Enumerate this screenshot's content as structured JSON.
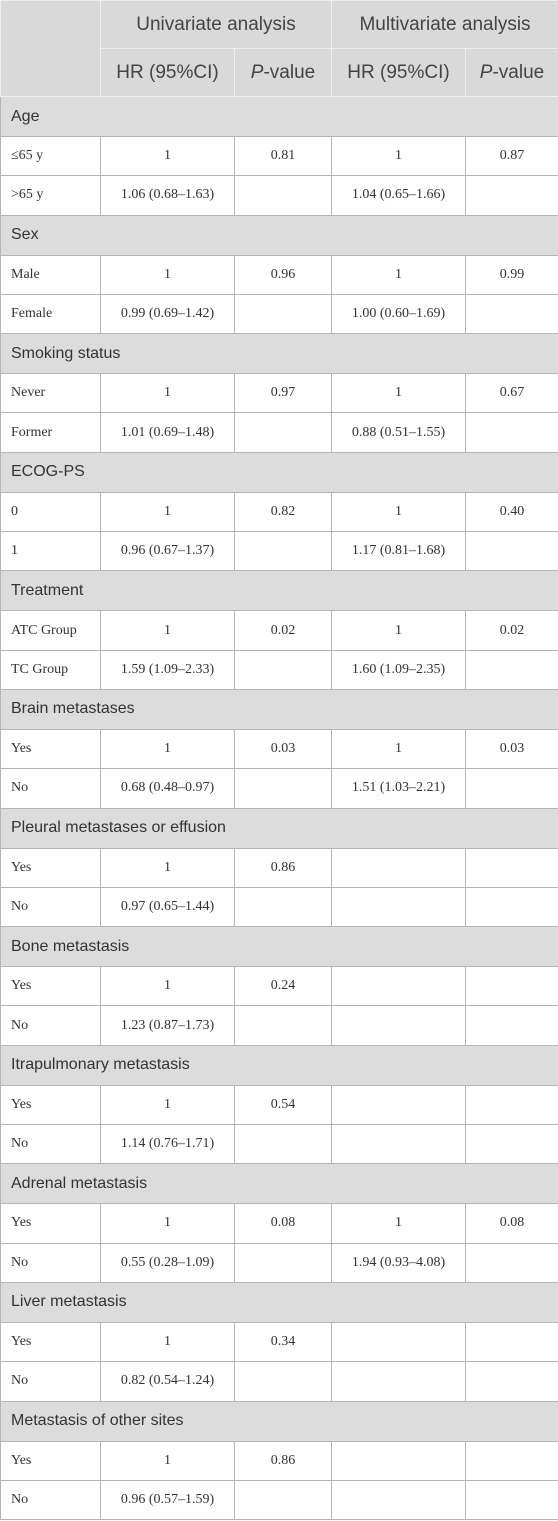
{
  "header": {
    "row1": [
      "Univariate analysis",
      "Multivariate analysis"
    ],
    "row2": [
      "HR (95%CI)",
      {
        "italic": "P",
        "rest": "-value"
      },
      "HR (95%CI)",
      {
        "italic": "P",
        "rest": "-value"
      }
    ]
  },
  "groups": [
    {
      "label": "Age",
      "rows": [
        [
          "≤65 y",
          "1",
          "0.81",
          "1",
          "0.87"
        ],
        [
          ">65 y",
          "1.06 (0.68–1.63)",
          null,
          "1.04 (0.65–1.66)",
          null
        ]
      ]
    },
    {
      "label": "Sex",
      "rows": [
        [
          "Male",
          "1",
          "0.96",
          "1",
          "0.99"
        ],
        [
          "Female",
          "0.99 (0.69–1.42)",
          null,
          "1.00 (0.60–1.69)",
          null
        ]
      ]
    },
    {
      "label": "Smoking status",
      "rows": [
        [
          "Never",
          "1",
          "0.97",
          "1",
          "0.67"
        ],
        [
          "Former",
          "1.01 (0.69–1.48)",
          null,
          "0.88 (0.51–1.55)",
          null
        ]
      ]
    },
    {
      "label": "ECOG-PS",
      "rows": [
        [
          "0",
          "1",
          "0.82",
          "1",
          "0.40"
        ],
        [
          "1",
          "0.96 (0.67–1.37)",
          null,
          "1.17 (0.81–1.68)",
          null
        ]
      ]
    },
    {
      "label": "Treatment",
      "rows": [
        [
          "ATC Group",
          "1",
          "0.02",
          "1",
          "0.02"
        ],
        [
          "TC Group",
          "1.59 (1.09–2.33)",
          null,
          "1.60 (1.09–2.35)",
          null
        ]
      ]
    },
    {
      "label": "Brain metastases",
      "rows": [
        [
          "Yes",
          "1",
          "0.03",
          "1",
          "0.03"
        ],
        [
          "No",
          "0.68 (0.48–0.97)",
          null,
          "1.51 (1.03–2.21)",
          null
        ]
      ]
    },
    {
      "label": "Pleural metastases or effusion",
      "rows": [
        [
          "Yes",
          "1",
          "0.86",
          null,
          null
        ],
        [
          "No",
          "0.97 (0.65–1.44)",
          null,
          null,
          null
        ]
      ]
    },
    {
      "label": "Bone metastasis",
      "rows": [
        [
          "Yes",
          "1",
          "0.24",
          null,
          null
        ],
        [
          "No",
          "1.23 (0.87–1.73)",
          null,
          null,
          null
        ]
      ]
    },
    {
      "label": "Itrapulmonary metastasis",
      "rows": [
        [
          "Yes",
          "1",
          "0.54",
          null,
          null
        ],
        [
          "No",
          "1.14 (0.76–1.71)",
          null,
          null,
          null
        ]
      ]
    },
    {
      "label": "Adrenal metastasis",
      "rows": [
        [
          "Yes",
          "1",
          "0.08",
          "1",
          "0.08"
        ],
        [
          "No",
          "0.55 (0.28–1.09)",
          null,
          "1.94 (0.93–4.08)",
          null
        ]
      ]
    },
    {
      "label": "Liver metastasis",
      "rows": [
        [
          "Yes",
          "1",
          "0.34",
          null,
          null
        ],
        [
          "No",
          "0.82 (0.54–1.24)",
          null,
          null,
          null
        ]
      ]
    },
    {
      "label": "Metastasis of other sites",
      "rows": [
        [
          "Yes",
          "1",
          "0.86",
          null,
          null
        ],
        [
          "No",
          "0.96 (0.57–1.59)",
          null,
          null,
          null
        ]
      ]
    }
  ]
}
